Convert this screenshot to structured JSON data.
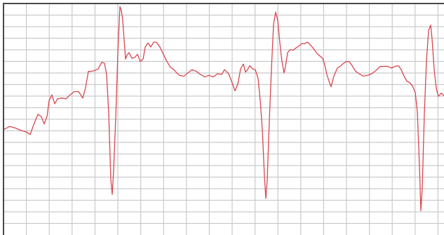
{
  "chart_data": {
    "type": "line",
    "grid": true,
    "colors": {
      "trace": "#d9474f",
      "grid": "#c8cacd",
      "frame": "#4a4a4a",
      "background": "#ffffff"
    },
    "xlim": [
      0,
      633
    ],
    "ylim": [
      -1.3,
      1.6
    ],
    "series": [
      {
        "values": [
          [
            5,
            0.0
          ],
          [
            14,
            0.04
          ],
          [
            22,
            0.02
          ],
          [
            30,
            -0.01
          ],
          [
            38,
            -0.03
          ],
          [
            43,
            -0.06
          ],
          [
            48,
            0.06
          ],
          [
            54,
            0.19
          ],
          [
            59,
            0.16
          ],
          [
            63,
            0.07
          ],
          [
            67,
            0.16
          ],
          [
            70,
            0.36
          ],
          [
            74,
            0.43
          ],
          [
            78,
            0.32
          ],
          [
            82,
            0.38
          ],
          [
            88,
            0.39
          ],
          [
            94,
            0.38
          ],
          [
            100,
            0.43
          ],
          [
            106,
            0.47
          ],
          [
            112,
            0.47
          ],
          [
            118,
            0.39
          ],
          [
            122,
            0.52
          ],
          [
            126,
            0.72
          ],
          [
            130,
            0.72
          ],
          [
            135,
            0.73
          ],
          [
            140,
            0.75
          ],
          [
            145,
            0.83
          ],
          [
            149,
            0.82
          ],
          [
            152,
            0.68
          ],
          [
            155,
            0.2
          ],
          [
            158,
            -0.62
          ],
          [
            160,
            -0.8
          ],
          [
            162,
            -0.5
          ],
          [
            165,
            0.15
          ],
          [
            168,
            0.95
          ],
          [
            171,
            1.52
          ],
          [
            173,
            1.47
          ],
          [
            175,
            1.35
          ],
          [
            177,
            1.1
          ],
          [
            179,
            0.87
          ],
          [
            181,
            0.92
          ],
          [
            184,
            0.95
          ],
          [
            188,
            0.88
          ],
          [
            192,
            0.89
          ],
          [
            196,
            0.93
          ],
          [
            200,
            0.84
          ],
          [
            204,
            0.87
          ],
          [
            207,
            1.02
          ],
          [
            211,
            1.07
          ],
          [
            215,
            1.02
          ],
          [
            219,
            1.08
          ],
          [
            223,
            1.08
          ],
          [
            228,
            1.02
          ],
          [
            233,
            0.93
          ],
          [
            238,
            0.84
          ],
          [
            243,
            0.77
          ],
          [
            248,
            0.74
          ],
          [
            252,
            0.7
          ],
          [
            256,
            0.67
          ],
          [
            262,
            0.66
          ],
          [
            268,
            0.7
          ],
          [
            274,
            0.74
          ],
          [
            280,
            0.72
          ],
          [
            286,
            0.68
          ],
          [
            292,
            0.65
          ],
          [
            298,
            0.67
          ],
          [
            304,
            0.65
          ],
          [
            310,
            0.69
          ],
          [
            316,
            0.68
          ],
          [
            320,
            0.74
          ],
          [
            326,
            0.69
          ],
          [
            330,
            0.6
          ],
          [
            335,
            0.48
          ],
          [
            339,
            0.56
          ],
          [
            343,
            0.75
          ],
          [
            347,
            0.81
          ],
          [
            350,
            0.71
          ],
          [
            353,
            0.74
          ],
          [
            356,
            0.79
          ],
          [
            360,
            0.75
          ],
          [
            364,
            0.74
          ],
          [
            368,
            0.63
          ],
          [
            371,
            0.36
          ],
          [
            374,
            0.0
          ],
          [
            377,
            -0.58
          ],
          [
            379,
            -0.85
          ],
          [
            381,
            -0.62
          ],
          [
            384,
            0.12
          ],
          [
            387,
            0.75
          ],
          [
            390,
            1.3
          ],
          [
            393,
            1.45
          ],
          [
            396,
            1.35
          ],
          [
            399,
            1.07
          ],
          [
            402,
            0.84
          ],
          [
            405,
            0.7
          ],
          [
            407,
            0.78
          ],
          [
            410,
            0.95
          ],
          [
            414,
            0.99
          ],
          [
            418,
            0.98
          ],
          [
            422,
            1.01
          ],
          [
            426,
            1.03
          ],
          [
            430,
            1.06
          ],
          [
            434,
            1.06
          ],
          [
            438,
            1.08
          ],
          [
            442,
            1.05
          ],
          [
            447,
            1.0
          ],
          [
            452,
            0.94
          ],
          [
            456,
            0.91
          ],
          [
            460,
            0.88
          ],
          [
            463,
            0.8
          ],
          [
            466,
            0.68
          ],
          [
            469,
            0.6
          ],
          [
            472,
            0.53
          ],
          [
            476,
            0.66
          ],
          [
            481,
            0.76
          ],
          [
            486,
            0.79
          ],
          [
            490,
            0.82
          ],
          [
            494,
            0.84
          ],
          [
            498,
            0.84
          ],
          [
            502,
            0.79
          ],
          [
            507,
            0.72
          ],
          [
            512,
            0.69
          ],
          [
            518,
            0.66
          ],
          [
            524,
            0.67
          ],
          [
            530,
            0.69
          ],
          [
            536,
            0.73
          ],
          [
            542,
            0.78
          ],
          [
            548,
            0.78
          ],
          [
            553,
            0.78
          ],
          [
            558,
            0.76
          ],
          [
            563,
            0.78
          ],
          [
            568,
            0.79
          ],
          [
            572,
            0.74
          ],
          [
            576,
            0.66
          ],
          [
            580,
            0.6
          ],
          [
            584,
            0.58
          ],
          [
            588,
            0.54
          ],
          [
            592,
            0.46
          ],
          [
            595,
            0.22
          ],
          [
            598,
            -0.45
          ],
          [
            600,
            -1.0
          ],
          [
            602,
            -0.72
          ],
          [
            605,
            0.2
          ],
          [
            608,
            0.85
          ],
          [
            611,
            1.22
          ],
          [
            614,
            1.29
          ],
          [
            616,
            1.12
          ],
          [
            619,
            0.74
          ],
          [
            622,
            0.51
          ],
          [
            625,
            0.41
          ],
          [
            629,
            0.45
          ],
          [
            633,
            0.42
          ]
        ]
      }
    ]
  }
}
